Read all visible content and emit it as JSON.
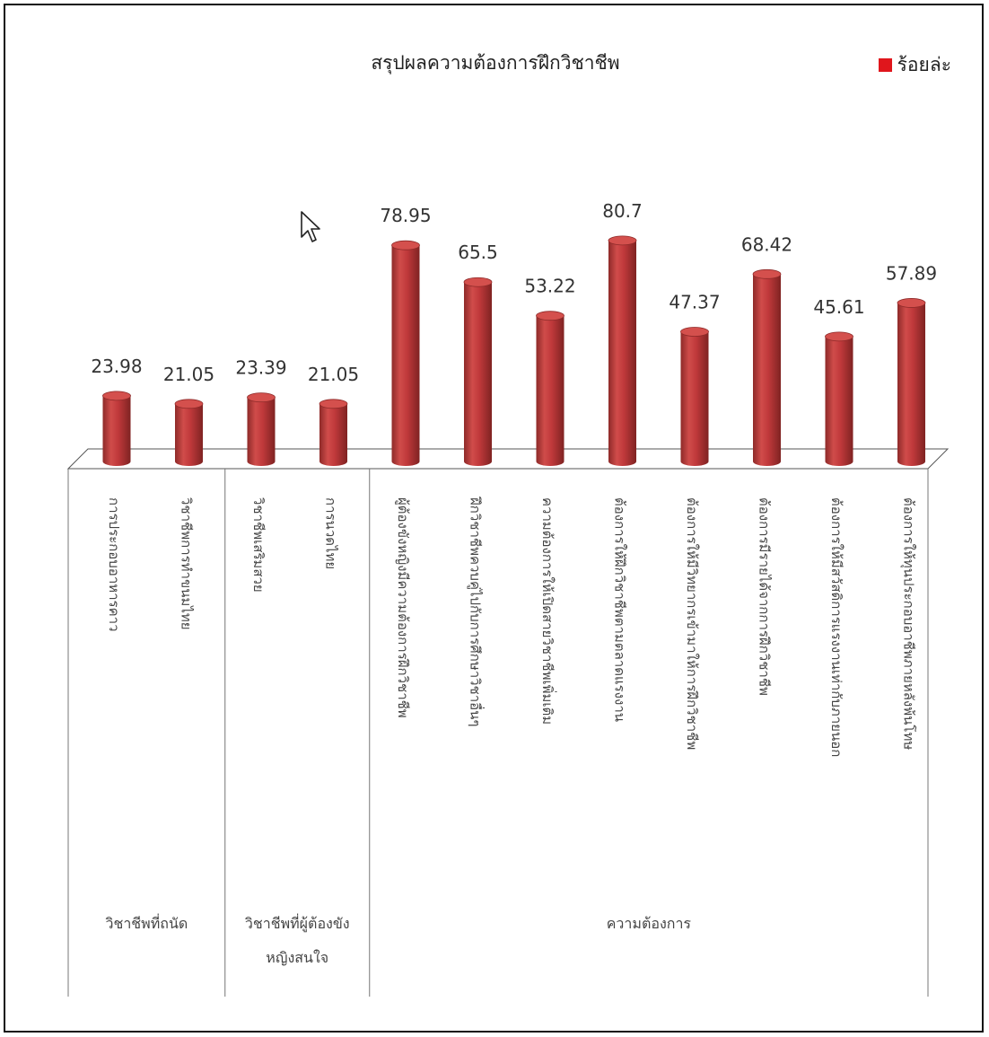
{
  "chart_data": {
    "type": "bar",
    "title": "สรุปผลความต้องการฝึกวิชาชีพ",
    "legend": "ร้อยล่ะ",
    "legend_position": "top-right",
    "bar_color": "#c0393b",
    "legend_color": "#e0161c",
    "categories": [
      "การประกอบอาหารคาว",
      "วิชาชีพการทำขนมไทย",
      "วิชาชีพเสริมสวย",
      "การนวดไทย",
      "ผู้ต้องขังหญิงมีความต้องการฝึกวิชาชีพ",
      "ฝึกวิชาชีพควบคู่ไปกับการศึกษาวิชาอื่นๆ",
      "ความต้องการให้เปิดสายวิชาชีพเพิ่มเติม",
      "ต้องการให้ฝึกวิชาชีพตามตลาดแรงงาน",
      "ต้องการให้มีวิทยากรเข้ามาให้การฝึกวิชาชีพ",
      "ต้องการมีรายได้จากการฝึกวิชาชีพ",
      "ต้องการให้มีสวัสดิการแรงงานเท่ากับภายนอก",
      "ต้องการให้ทุนประกอบอาชีพภายหลังพ้นโทษ"
    ],
    "values": [
      23.98,
      21.05,
      23.39,
      21.05,
      78.95,
      65.5,
      53.22,
      80.7,
      47.37,
      68.42,
      45.61,
      57.89
    ],
    "value_labels": [
      "23.98",
      "21.05",
      "23.39",
      "21.05",
      "78.95",
      "65.5",
      "53.22",
      "80.7",
      "47.37",
      "68.42",
      "45.61",
      "57.89"
    ],
    "groups": [
      {
        "label": "วิชาชีพที่ถนัด",
        "lines": [
          "วิชาชีพที่ถนัด"
        ],
        "count": 2
      },
      {
        "label": "วิชาชีพที่ผู้ต้องขังหญิงสนใจ",
        "lines": [
          "วิชาชีพที่ผู้ต้องขัง",
          "หญิงสนใจ"
        ],
        "count": 2
      },
      {
        "label": "ความต้องการ",
        "lines": [
          "ความต้องการ"
        ],
        "count": 8
      }
    ],
    "grid": false,
    "ylim": [
      0,
      100
    ]
  }
}
